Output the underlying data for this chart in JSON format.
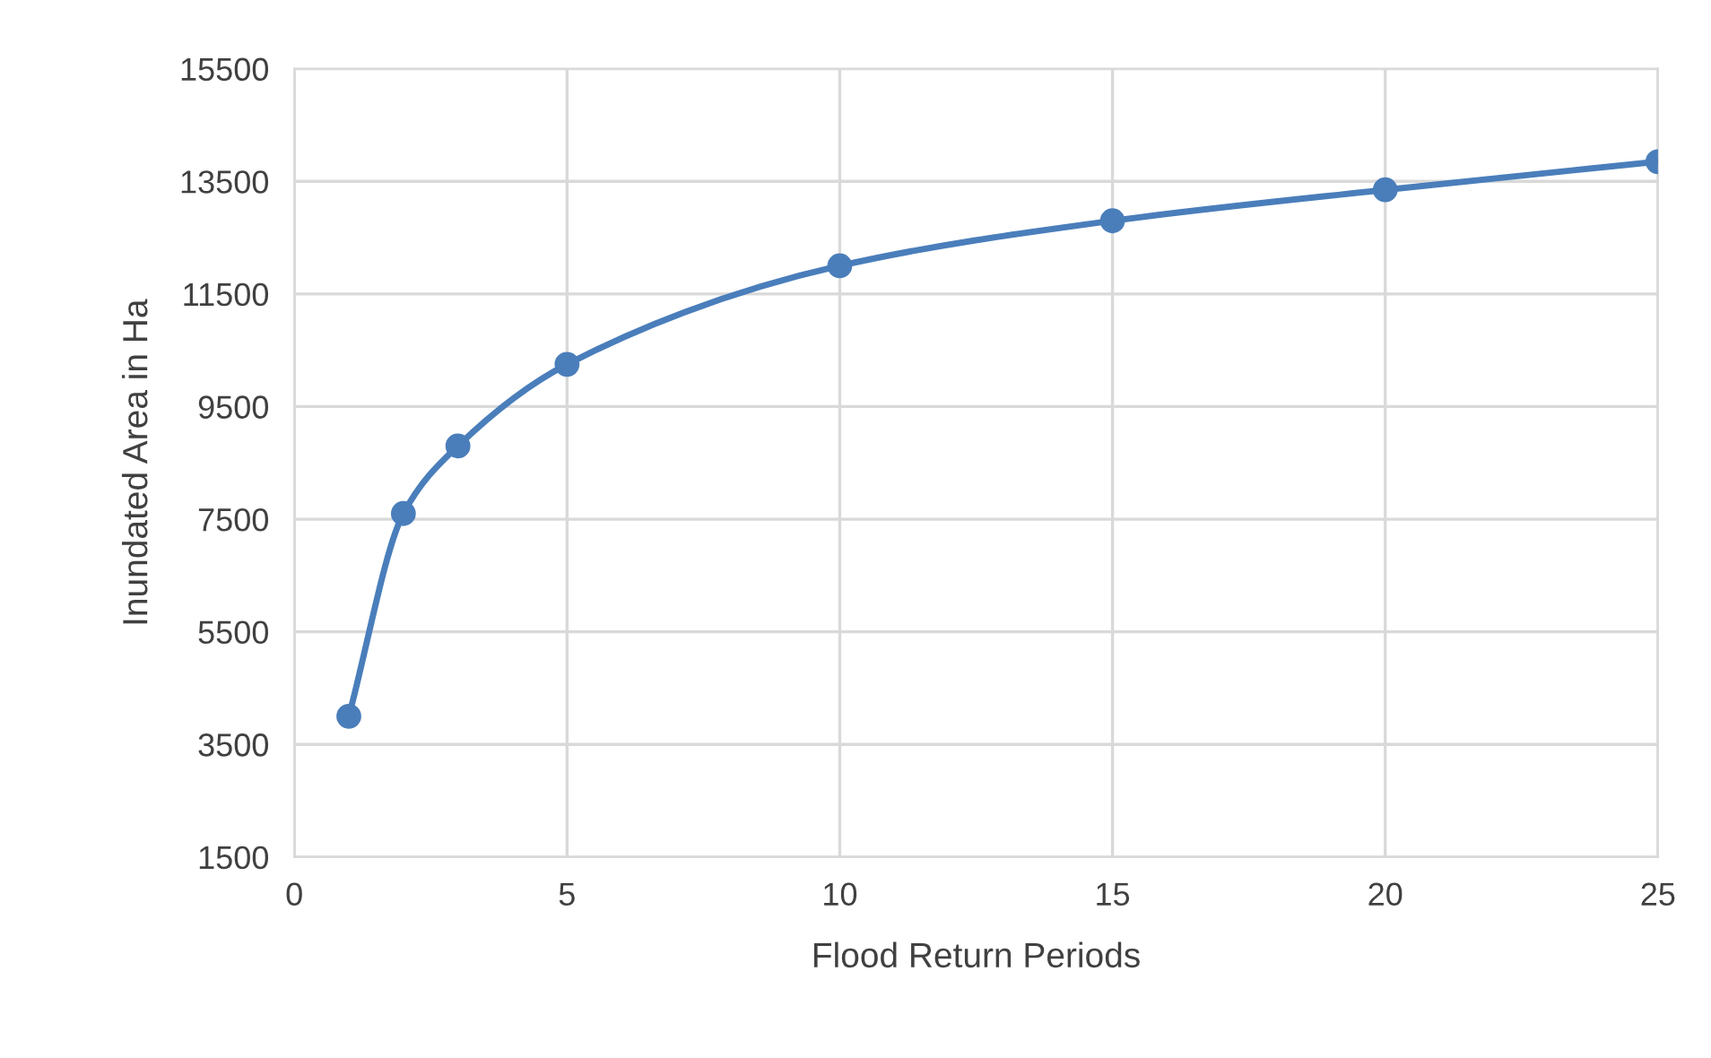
{
  "chart_data": {
    "type": "line",
    "xlabel": "Flood Return Periods",
    "ylabel": "Inundated Area in Ha",
    "x": [
      1,
      2,
      3,
      5,
      10,
      15,
      20,
      25
    ],
    "series": [
      {
        "color": "#4a7ebb",
        "values": [
          4000,
          7600,
          8800,
          10250,
          12000,
          12800,
          13350,
          13850
        ]
      }
    ],
    "xlim": [
      0,
      25
    ],
    "xticks": [
      0,
      5,
      10,
      15,
      20,
      25
    ],
    "ylim": [
      1500,
      15500
    ],
    "yticks": [
      1500,
      3500,
      5500,
      7500,
      9500,
      11500,
      13500,
      15500
    ],
    "grid": true,
    "marker": "circle",
    "line_style": "solid",
    "legend": false
  }
}
